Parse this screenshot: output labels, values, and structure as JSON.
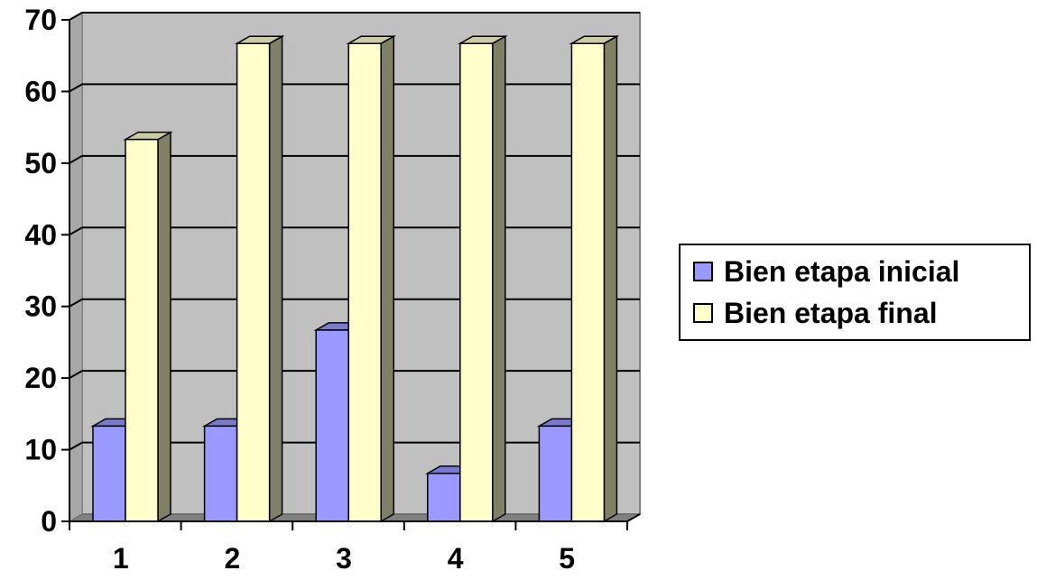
{
  "chart_data": {
    "type": "bar",
    "style": "3d-clustered-column",
    "categories": [
      "1",
      "2",
      "3",
      "4",
      "5"
    ],
    "series": [
      {
        "name": "Bien etapa inicial",
        "values": [
          13.3,
          13.3,
          26.7,
          6.7,
          13.3
        ],
        "color": "#9999ff"
      },
      {
        "name": "Bien etapa final",
        "values": [
          53.3,
          66.7,
          66.7,
          66.7,
          66.7
        ],
        "color": "#ffffcc"
      }
    ],
    "ylim": [
      0,
      70
    ],
    "yticks": [
      "0",
      "10",
      "20",
      "30",
      "40",
      "50",
      "60",
      "70"
    ],
    "grid": true,
    "plot_background": "#c0c0c0",
    "legend_position": "right"
  }
}
